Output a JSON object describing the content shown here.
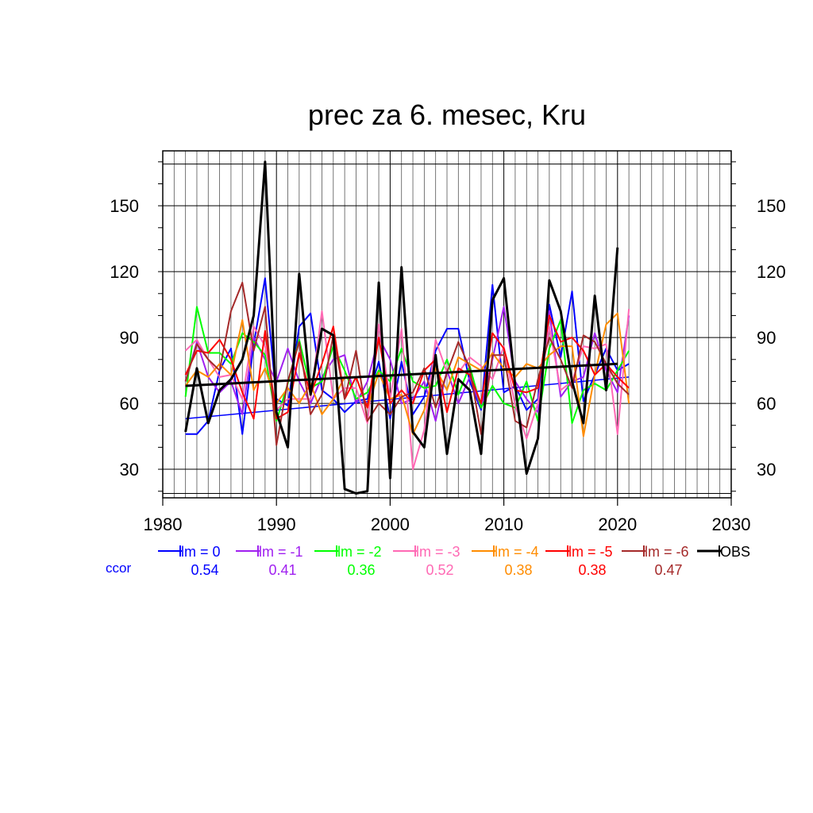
{
  "chart_data": {
    "type": "line",
    "title": "prec za 6. mesec, Kru",
    "xlabel": "",
    "ylabel": "",
    "xlim": [
      1980,
      2030
    ],
    "ylim": [
      17,
      175
    ],
    "x_ticks": [
      "1980",
      "1990",
      "2000",
      "2010",
      "2020",
      "2030"
    ],
    "y_ticks": [
      "30",
      "60",
      "90",
      "120",
      "150"
    ],
    "grid": true,
    "legend_position": "bottom",
    "ccor_label": "ccor",
    "series": [
      {
        "name": "lm = 0",
        "color": "#0000ff",
        "ccor": "0.54",
        "x": [
          1982,
          1983,
          1984,
          1985,
          1986,
          1987,
          1988,
          1989,
          1990,
          1991,
          1992,
          1993,
          1994,
          1995,
          1996,
          1997,
          1998,
          1999,
          2000,
          2001,
          2002,
          2003,
          2004,
          2005,
          2006,
          2007,
          2008,
          2009,
          2010,
          2011,
          2012,
          2013,
          2014,
          2015,
          2016,
          2017,
          2018,
          2019,
          2020,
          2021
        ],
        "y": [
          46,
          46,
          52,
          75,
          85,
          46,
          87,
          117,
          62,
          59,
          95,
          101,
          66,
          62,
          56,
          61,
          62,
          79,
          53,
          79,
          55,
          63,
          84,
          94,
          94,
          70,
          57,
          114,
          65,
          68,
          57,
          62,
          105,
          81,
          111,
          61,
          73,
          85,
          75,
          78
        ],
        "trend": [
          53,
          72
        ]
      },
      {
        "name": "lm = -1",
        "color": "#a020f0",
        "ccor": "0.41",
        "x": [
          1982,
          1983,
          1984,
          1985,
          1986,
          1987,
          1988,
          1989,
          1990,
          1991,
          1992,
          1993,
          1994,
          1995,
          1996,
          1997,
          1998,
          1999,
          2000,
          2001,
          2002,
          2003,
          2004,
          2005,
          2006,
          2007,
          2008,
          2009,
          2010,
          2011,
          2012,
          2013,
          2014,
          2015,
          2016,
          2017,
          2018,
          2019,
          2020,
          2021
        ],
        "y": [
          70,
          88,
          72,
          65,
          70,
          55,
          90,
          80,
          70,
          85,
          70,
          60,
          72,
          80,
          82,
          60,
          70,
          90,
          80,
          60,
          62,
          70,
          52,
          75,
          60,
          72,
          58,
          80,
          104,
          70,
          62,
          56,
          102,
          63,
          70,
          72,
          92,
          75,
          65,
          100
        ]
      },
      {
        "name": "lm = -2",
        "color": "#00ff00",
        "ccor": "0.36",
        "x": [
          1982,
          1983,
          1984,
          1985,
          1986,
          1987,
          1988,
          1989,
          1990,
          1991,
          1992,
          1993,
          1994,
          1995,
          1996,
          1997,
          1998,
          1999,
          2000,
          2001,
          2002,
          2003,
          2004,
          2005,
          2006,
          2007,
          2008,
          2009,
          2010,
          2011,
          2012,
          2013,
          2014,
          2015,
          2016,
          2017,
          2018,
          2019,
          2020,
          2021
        ],
        "y": [
          63,
          104,
          83,
          83,
          78,
          92,
          88,
          82,
          52,
          69,
          89,
          67,
          70,
          86,
          75,
          62,
          65,
          75,
          70,
          85,
          70,
          67,
          68,
          80,
          64,
          77,
          58,
          68,
          60,
          58,
          70,
          52,
          85,
          98,
          51,
          66,
          69,
          66,
          75,
          84
        ]
      },
      {
        "name": "lm = -3",
        "color": "#ff69b4",
        "ccor": "0.52",
        "x": [
          1982,
          1983,
          1984,
          1985,
          1986,
          1987,
          1988,
          1989,
          1990,
          1991,
          1992,
          1993,
          1994,
          1995,
          1996,
          1997,
          1998,
          1999,
          2000,
          2001,
          2002,
          2003,
          2004,
          2005,
          2006,
          2007,
          2008,
          2009,
          2010,
          2011,
          2012,
          2013,
          2014,
          2015,
          2016,
          2017,
          2018,
          2019,
          2020,
          2021
        ],
        "y": [
          84,
          89,
          80,
          72,
          73,
          62,
          95,
          86,
          57,
          62,
          62,
          62,
          102,
          62,
          67,
          67,
          51,
          96,
          62,
          94,
          30,
          48,
          89,
          74,
          74,
          81,
          77,
          71,
          86,
          59,
          44,
          60,
          95,
          66,
          70,
          86,
          85,
          87,
          46,
          103
        ]
      },
      {
        "name": "lm = -4",
        "color": "#ff8c00",
        "ccor": "0.38",
        "x": [
          1982,
          1983,
          1984,
          1985,
          1986,
          1987,
          1988,
          1989,
          1990,
          1991,
          1992,
          1993,
          1994,
          1995,
          1996,
          1997,
          1998,
          1999,
          2000,
          2001,
          2002,
          2003,
          2004,
          2005,
          2006,
          2007,
          2008,
          2009,
          2010,
          2011,
          2012,
          2013,
          2014,
          2015,
          2016,
          2017,
          2018,
          2019,
          2020,
          2021
        ],
        "y": [
          68,
          75,
          72,
          78,
          73,
          98,
          66,
          76,
          60,
          67,
          60,
          69,
          55,
          62,
          72,
          72,
          58,
          74,
          62,
          64,
          46,
          57,
          76,
          66,
          81,
          78,
          75,
          83,
          76,
          72,
          78,
          76,
          82,
          86,
          86,
          45,
          73,
          96,
          101,
          60
        ]
      },
      {
        "name": "lm = -5",
        "color": "#ff0000",
        "ccor": "0.38",
        "x": [
          1982,
          1983,
          1984,
          1985,
          1986,
          1987,
          1988,
          1989,
          1990,
          1991,
          1992,
          1993,
          1994,
          1995,
          1996,
          1997,
          1998,
          1999,
          2000,
          2001,
          2002,
          2003,
          2004,
          2005,
          2006,
          2007,
          2008,
          2009,
          2010,
          2011,
          2012,
          2013,
          2014,
          2015,
          2016,
          2017,
          2018,
          2019,
          2020,
          2021
        ],
        "y": [
          73,
          84,
          83,
          89,
          80,
          65,
          53,
          93,
          53,
          56,
          83,
          64,
          78,
          95,
          62,
          72,
          58,
          90,
          60,
          66,
          60,
          75,
          80,
          56,
          76,
          73,
          60,
          92,
          85,
          66,
          65,
          67,
          100,
          88,
          90,
          84,
          73,
          78,
          72,
          67
        ]
      },
      {
        "name": "lm = -6",
        "color": "#a52a2a",
        "ccor": "0.47",
        "x": [
          1982,
          1983,
          1984,
          1985,
          1986,
          1987,
          1988,
          1989,
          1990,
          1991,
          1992,
          1993,
          1994,
          1995,
          1996,
          1997,
          1998,
          1999,
          2000,
          2001,
          2002,
          2003,
          2004,
          2005,
          2006,
          2007,
          2008,
          2009,
          2010,
          2011,
          2012,
          2013,
          2014,
          2015,
          2016,
          2017,
          2018,
          2019,
          2020,
          2021
        ],
        "y": [
          70,
          87,
          80,
          75,
          102,
          115,
          84,
          104,
          41,
          70,
          88,
          55,
          64,
          91,
          62,
          84,
          52,
          60,
          55,
          63,
          65,
          76,
          58,
          74,
          88,
          76,
          46,
          82,
          82,
          52,
          49,
          71,
          90,
          80,
          67,
          91,
          88,
          78,
          69,
          64
        ]
      },
      {
        "name": "OBS",
        "color": "#000000",
        "ccor": "",
        "x": [
          1982,
          1983,
          1984,
          1985,
          1986,
          1987,
          1988,
          1989,
          1990,
          1991,
          1992,
          1993,
          1994,
          1995,
          1996,
          1997,
          1998,
          1999,
          2000,
          2001,
          2002,
          2003,
          2004,
          2005,
          2006,
          2007,
          2008,
          2009,
          2010,
          2011,
          2012,
          2013,
          2014,
          2015,
          2016,
          2017,
          2018,
          2019,
          2020
        ],
        "y": [
          47,
          76,
          51,
          66,
          71,
          80,
          100,
          170,
          56,
          40,
          119,
          64,
          94,
          91,
          21,
          19,
          20,
          115,
          26,
          122,
          47,
          40,
          82,
          37,
          71,
          66,
          37,
          107,
          117,
          68,
          28,
          44,
          116,
          102,
          70,
          51,
          109,
          66,
          131
        ],
        "trend": [
          68,
          78
        ]
      }
    ]
  }
}
